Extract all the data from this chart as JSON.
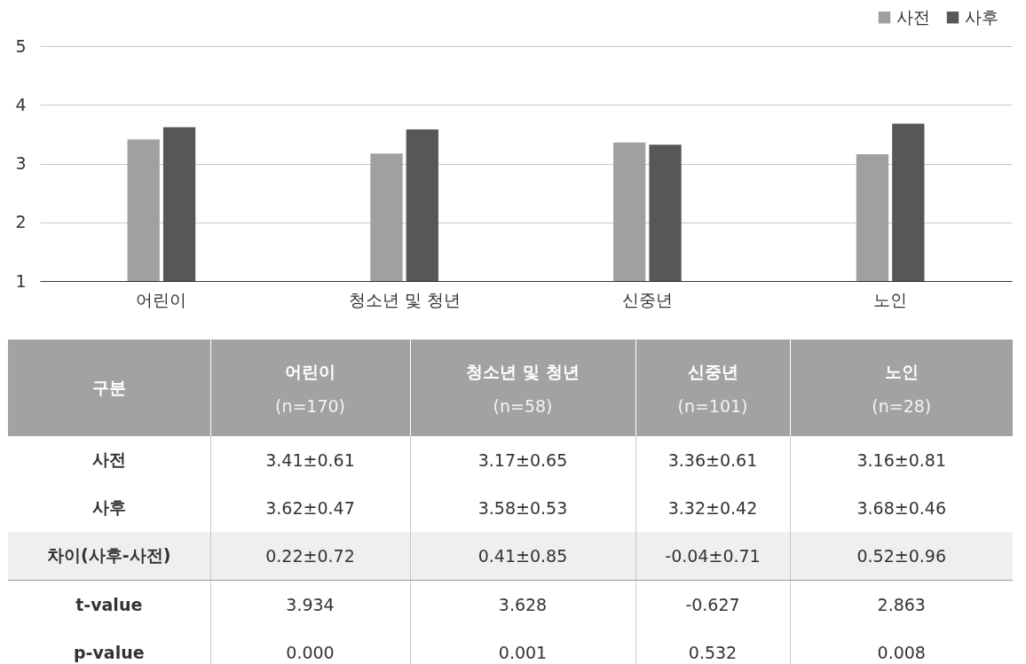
{
  "chart_data": [
    {
      "type": "bar",
      "categories": [
        "어린이",
        "청소년  및 청년",
        "신중년",
        "노인"
      ],
      "series": [
        {
          "name": "사전",
          "color": "#a0a19f",
          "values": [
            3.41,
            3.17,
            3.36,
            3.16
          ]
        },
        {
          "name": "사후",
          "color": "#595657",
          "values": [
            3.62,
            3.58,
            3.32,
            3.68
          ]
        }
      ],
      "ylim": [
        1,
        5
      ],
      "yticks": [
        1,
        2,
        3,
        4,
        5
      ],
      "grid": "y",
      "legend": "top right"
    },
    {
      "type": "other",
      "ylabel": "구분",
      "categories": [
        "어린이\n(n=170)",
        "청소년 및 청년\n(n=58)",
        "신중년\n(n=101)",
        "노인\n(n=28)"
      ],
      "y_categories": [
        "사전",
        "사후",
        "차이(사후-사전)",
        "t-value",
        "p-value"
      ],
      "cell_labels": [
        [
          "3.41±0.61",
          "3.17±0.65",
          "3.36±0.61",
          "3.16±0.81"
        ],
        [
          "3.62±0.47",
          "3.58±0.53",
          "3.32±0.42",
          "3.68±0.46"
        ],
        [
          "0.22±0.72",
          "0.41±0.85",
          "-0.04±0.71",
          "0.52±0.96"
        ],
        [
          "3.934",
          "3.628",
          "-0.627",
          "2.863"
        ],
        [
          "0.000",
          "0.001",
          "0.532",
          "0.008"
        ]
      ]
    }
  ]
}
